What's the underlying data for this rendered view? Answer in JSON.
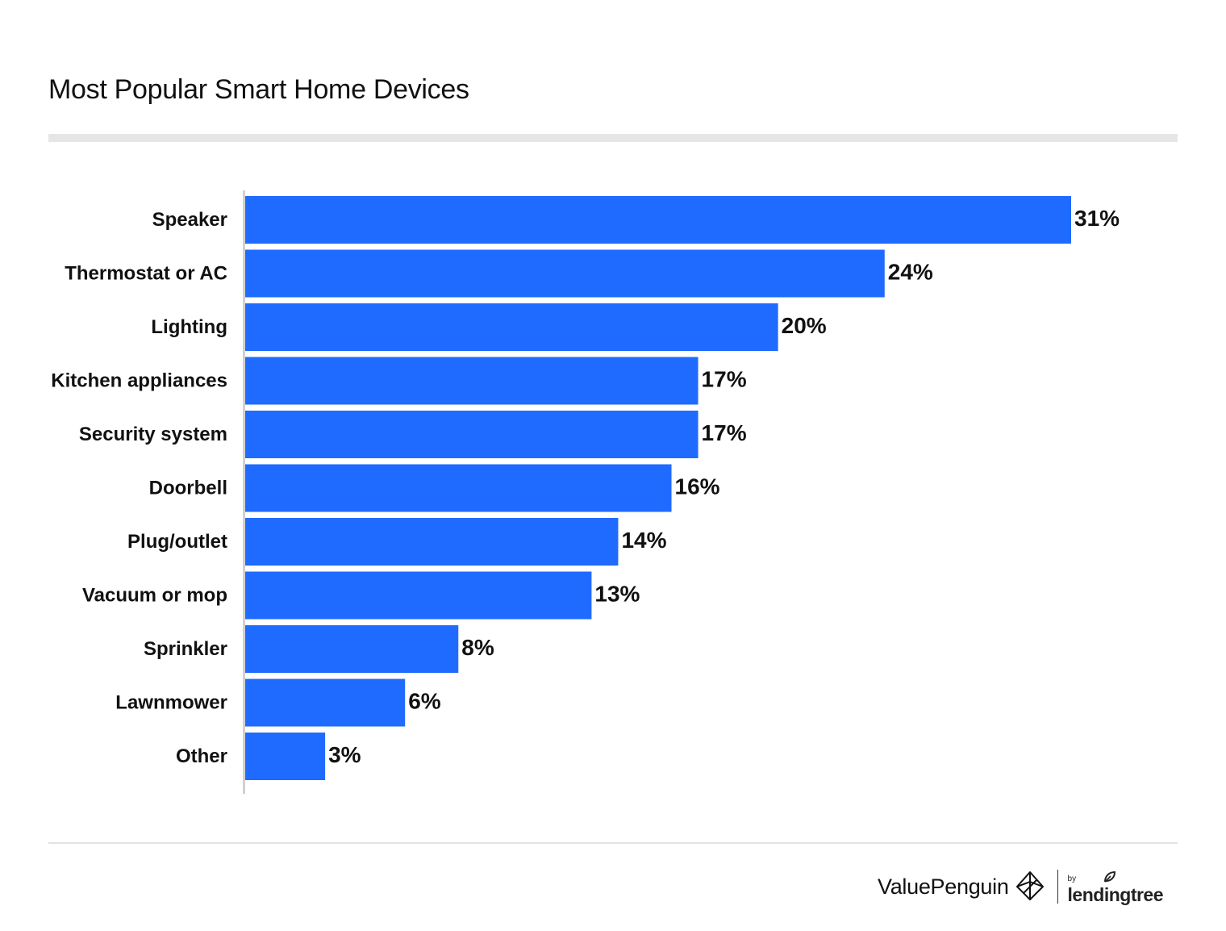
{
  "title": "Most Popular Smart Home Devices",
  "colors": {
    "bar": "#1f6bff",
    "axis": "#bbbbbb",
    "text": "#111111"
  },
  "footer": {
    "brand": "ValuePenguin",
    "brand_icon": "valuepenguin-logo-icon",
    "by": "by",
    "partner": "lendingtree",
    "partner_icon": "leaf-icon"
  },
  "chart_data": {
    "type": "bar",
    "orientation": "horizontal",
    "title": "Most Popular Smart Home Devices",
    "xlabel": "",
    "ylabel": "",
    "unit": "%",
    "xlim": [
      0,
      31
    ],
    "grid": false,
    "categories": [
      "Speaker",
      "Thermostat or AC",
      "Lighting",
      "Kitchen appliances",
      "Security system",
      "Doorbell",
      "Plug/outlet",
      "Vacuum or mop",
      "Sprinkler",
      "Lawnmower",
      "Other"
    ],
    "values": [
      31,
      24,
      20,
      17,
      17,
      16,
      14,
      13,
      8,
      6,
      3
    ],
    "labels": [
      "31%",
      "24%",
      "20%",
      "17%",
      "17%",
      "16%",
      "14%",
      "13%",
      "8%",
      "6%",
      "3%"
    ]
  }
}
